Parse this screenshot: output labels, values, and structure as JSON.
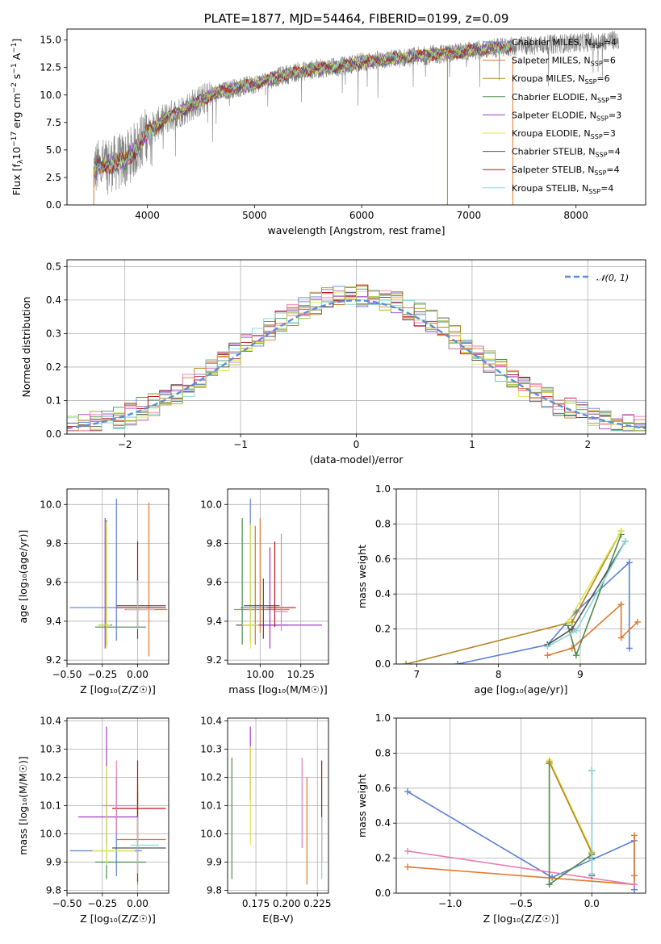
{
  "colors": {
    "Chabrier MILES": "#5b7fd6",
    "Salpeter MILES": "#e0782e",
    "Kroupa MILES": "#b5841c",
    "Chabrier ELODIE": "#4c8a4c",
    "Salpeter ELODIE": "#a03cc8",
    "Kroupa ELODIE": "#dde84a",
    "Chabrier STELIB": "#505050",
    "Salpeter STELIB": "#b01818",
    "Kroupa STELIB": "#88d6d6",
    "pink": "#e67fb4",
    "olive": "#a8c850",
    "data": "#808080"
  },
  "chart_data": [
    {
      "id": "spectrum",
      "type": "line",
      "title": "PLATE=1877, MJD=54464, FIBERID=0199, z=0.09",
      "xlabel": "wavelength [Angstrom, rest frame]",
      "ylabel": "Flux [f$_\\lambda$10$^{-17}$ erg cm$^{-2}$ s$^{-1}$ A$^{-1}$]",
      "ylabel_html": "Flux [fλ10⁻¹⁷ erg cm⁻² s⁻¹ A⁻¹]",
      "xlim": [
        3250,
        8650
      ],
      "ylim": [
        0,
        16
      ],
      "xticks": [
        4000,
        5000,
        6000,
        7000,
        8000
      ],
      "yticks": [
        0.0,
        2.5,
        5.0,
        7.5,
        10.0,
        12.5,
        15.0
      ],
      "legend": [
        "Chabrier MILES, N$_{SSP}$=4",
        "Salpeter MILES, N$_{SSP}$=6",
        "Kroupa MILES, N$_{SSP}$=6",
        "Chabrier ELODIE, N$_{SSP}$=3",
        "Salpeter ELODIE, N$_{SSP}$=3",
        "Kroupa ELODIE, N$_{SSP}$=3",
        "Chabrier STELIB, N$_{SSP}$=4",
        "Salpeter STELIB, N$_{SSP}$=4",
        "Kroupa STELIB, N$_{SSP}$=4"
      ],
      "legend_html": [
        "Chabrier MILES, N<sub>SSP</sub>=4",
        "Salpeter MILES, N<sub>SSP</sub>=6",
        "Kroupa MILES, N<sub>SSP</sub>=6",
        "Chabrier ELODIE, N<sub>SSP</sub>=3",
        "Salpeter ELODIE, N<sub>SSP</sub>=3",
        "Kroupa ELODIE, N<sub>SSP</sub>=3",
        "Chabrier STELIB, N<sub>SSP</sub>=4",
        "Salpeter STELIB, N<sub>SSP</sub>=4",
        "Kroupa STELIB, N<sub>SSP</sub>=4"
      ],
      "legend_position": "right",
      "continuum_x": [
        3500,
        3600,
        3700,
        3800,
        3900,
        4000,
        4100,
        4200,
        4300,
        4400,
        4500,
        4600,
        4800,
        5000,
        5200,
        5400,
        5600,
        5800,
        6000,
        6200,
        6400,
        6600,
        6800,
        7000,
        7200,
        7400
      ],
      "continuum_y": [
        3.3,
        3.6,
        3.8,
        4.1,
        5.2,
        6.6,
        7.4,
        8.0,
        8.5,
        9.0,
        9.5,
        10.0,
        10.6,
        11.0,
        11.6,
        12.1,
        12.4,
        12.6,
        13.0,
        13.2,
        13.4,
        13.6,
        13.8,
        14.0,
        14.2,
        14.4
      ],
      "model_x_range": [
        3500,
        7400
      ],
      "data_x_range": [
        3500,
        8400
      ],
      "vertical_lines": [
        {
          "x": 6800,
          "series": "Kroupa MILES"
        },
        {
          "x": 7410,
          "series": "Salpeter MILES"
        }
      ]
    },
    {
      "id": "residuals",
      "type": "step",
      "xlabel": "(data-model)/error",
      "ylabel": "Normed distribution",
      "xlim": [
        -2.5,
        2.5
      ],
      "ylim": [
        0,
        0.52
      ],
      "xticks": [
        -2,
        -1,
        0,
        1,
        2
      ],
      "yticks": [
        0.0,
        0.1,
        0.2,
        0.3,
        0.4,
        0.5
      ],
      "legend": [
        "$\\mathcal{N}(0,1)$"
      ],
      "legend_html": [
        "𝒩(0, 1)"
      ],
      "legend_position": "top-right",
      "bins": 50,
      "grid": true
    },
    {
      "id": "age_vs_Z",
      "type": "errorbar",
      "xlabel": "Z [log$_{10}$(Z/Z$_\\odot$)]",
      "xlabel_html": "Z [log₁₀(Z/Z☉)]",
      "ylabel": "age  [log$_{10}$(age/yr)]",
      "ylabel_html": "age  [log₁₀(age/yr)]",
      "xlim": [
        -0.5,
        0.22
      ],
      "ylim": [
        9.18,
        10.08
      ],
      "xticks": [
        -0.5,
        -0.25,
        0.0
      ],
      "yticks": [
        9.2,
        9.4,
        9.6,
        9.8,
        10.0
      ],
      "points": [
        {
          "s": "Chabrier MILES",
          "x": -0.15,
          "y": 9.47,
          "xerr": [
            0.33,
            0.18
          ],
          "yerr": [
            0.17,
            0.56
          ]
        },
        {
          "s": "Salpeter MILES",
          "x": 0.08,
          "y": 9.46,
          "xerr": [
            0.17,
            0.13
          ],
          "yerr": [
            0.24,
            0.55
          ]
        },
        {
          "s": "Kroupa MILES",
          "x": -0.22,
          "y": 9.38,
          "xerr": [
            0.04,
            0.03
          ],
          "yerr": [
            0.1,
            0.5
          ]
        },
        {
          "s": "Chabrier ELODIE",
          "x": -0.22,
          "y": 9.37,
          "xerr": [
            0.08,
            0.28
          ],
          "yerr": [
            0.1,
            0.55
          ]
        },
        {
          "s": "Salpeter ELODIE",
          "x": -0.23,
          "y": 9.38,
          "xerr": [
            0.05,
            0.05
          ],
          "yerr": [
            0.12,
            0.55
          ]
        },
        {
          "s": "Kroupa ELODIE",
          "x": -0.22,
          "y": 9.38,
          "xerr": [
            0.06,
            0.03
          ],
          "yerr": [
            0.12,
            0.53
          ]
        },
        {
          "s": "Chabrier STELIB",
          "x": 0.0,
          "y": 9.48,
          "xerr": [
            0.15,
            0.2
          ],
          "yerr": [
            0.17,
            0.14
          ]
        },
        {
          "s": "Salpeter STELIB",
          "x": 0.0,
          "y": 9.47,
          "xerr": [
            0.15,
            0.2
          ],
          "yerr": [
            0.1,
            0.34
          ]
        },
        {
          "s": "Kroupa STELIB",
          "x": 0.0,
          "y": 9.46,
          "xerr": [
            0.08,
            0.12
          ],
          "yerr": [
            0.1,
            0.15
          ]
        }
      ]
    },
    {
      "id": "age_vs_mass",
      "type": "errorbar",
      "xlabel": "mass [log$_{10}$(M/M$_\\odot$)]",
      "xlabel_html": "mass [log₁₀(M/M☉)]",
      "xlim": [
        9.8,
        10.42
      ],
      "ylim": [
        9.18,
        10.08
      ],
      "xticks": [
        10.0,
        10.25
      ],
      "yticks": [
        9.2,
        9.4,
        9.6,
        9.8,
        10.0
      ],
      "points": [
        {
          "s": "Chabrier MILES",
          "x": 9.94,
          "y": 9.47,
          "xerr": [
            0.06,
            0.16
          ],
          "yerr": [
            0.17,
            0.56
          ]
        },
        {
          "s": "Salpeter MILES",
          "x": 10.0,
          "y": 9.46,
          "xerr": [
            0.16,
            0.18
          ],
          "yerr": [
            0.12,
            0.47
          ]
        },
        {
          "s": "Kroupa MILES",
          "x": 9.97,
          "y": 9.38,
          "xerr": [
            0.05,
            0.05
          ],
          "yerr": [
            0.1,
            0.51
          ]
        },
        {
          "s": "Chabrier ELODIE",
          "x": 9.89,
          "y": 9.38,
          "xerr": [
            0.04,
            0.28
          ],
          "yerr": [
            0.1,
            0.55
          ]
        },
        {
          "s": "Salpeter ELODIE",
          "x": 10.06,
          "y": 9.38,
          "xerr": [
            0.2,
            0.32
          ],
          "yerr": [
            0.12,
            0.4
          ]
        },
        {
          "s": "Kroupa ELODIE",
          "x": 9.94,
          "y": 9.38,
          "xerr": [
            0.05,
            0.05
          ],
          "yerr": [
            0.12,
            0.52
          ]
        },
        {
          "s": "Chabrier STELIB",
          "x": 10.02,
          "y": 9.48,
          "xerr": [
            0.12,
            0.1
          ],
          "yerr": [
            0.17,
            0.14
          ]
        },
        {
          "s": "Salpeter STELIB",
          "x": 10.09,
          "y": 9.47,
          "xerr": [
            0.05,
            0.13
          ],
          "yerr": [
            0.1,
            0.34
          ]
        },
        {
          "s": "pink",
          "x": 10.13,
          "y": 9.45,
          "xerr": [
            0.04,
            0.04
          ],
          "yerr": [
            0.1,
            0.4
          ]
        }
      ]
    },
    {
      "id": "massweight_vs_age",
      "type": "line",
      "xlabel": "age  [log$_{10}$(age/yr)]",
      "xlabel_html": "age  [log₁₀(age/yr)]",
      "ylabel": "mass weight",
      "xlim": [
        6.75,
        9.8
      ],
      "ylim": [
        0,
        1.0
      ],
      "xticks": [
        7,
        8,
        9
      ],
      "yticks": [
        0.0,
        0.2,
        0.4,
        0.6,
        0.8,
        1.0
      ],
      "series": [
        {
          "s": "Chabrier MILES",
          "x": [
            7.5,
            8.6,
            8.95,
            9.6,
            9.6
          ],
          "y": [
            0.0,
            0.11,
            0.3,
            0.58,
            0.09
          ]
        },
        {
          "s": "Salpeter MILES",
          "x": [
            8.6,
            8.9,
            9.5,
            9.5,
            9.7
          ],
          "y": [
            0.05,
            0.09,
            0.34,
            0.15,
            0.24
          ]
        },
        {
          "s": "Kroupa MILES",
          "x": [
            6.87,
            8.9,
            9.5
          ],
          "y": [
            0.0,
            0.24,
            0.76
          ]
        },
        {
          "s": "Chabrier ELODIE",
          "x": [
            8.85,
            8.95,
            9.5
          ],
          "y": [
            0.22,
            0.05,
            0.74
          ]
        },
        {
          "s": "Kroupa ELODIE",
          "x": [
            8.85,
            9.5
          ],
          "y": [
            0.24,
            0.76
          ]
        },
        {
          "s": "Chabrier STELIB",
          "x": [
            8.6,
            8.9,
            9.55
          ],
          "y": [
            0.11,
            0.2,
            0.7
          ]
        },
        {
          "s": "Kroupa STELIB",
          "x": [
            8.6,
            8.95,
            9.55
          ],
          "y": [
            0.1,
            0.19,
            0.7
          ]
        }
      ]
    },
    {
      "id": "mass_vs_Z",
      "type": "errorbar",
      "xlabel": "Z [log$_{10}$(Z/Z$_\\odot$)]",
      "xlabel_html": "Z [log₁₀(Z/Z☉)]",
      "ylabel": "mass [log$_{10}$(M/M$_\\odot$)]",
      "ylabel_html": "mass [log₁₀(M/M☉)]",
      "xlim": [
        -0.5,
        0.22
      ],
      "ylim": [
        9.79,
        10.41
      ],
      "xticks": [
        -0.5,
        -0.25,
        0.0
      ],
      "yticks": [
        9.8,
        9.9,
        10.0,
        10.1,
        10.2,
        10.3,
        10.4
      ],
      "points": [
        {
          "s": "Chabrier MILES",
          "x": -0.15,
          "y": 9.94,
          "xerr": [
            0.33,
            0.18
          ],
          "yerr": [
            0.09,
            0.26
          ]
        },
        {
          "s": "Salpeter MILES",
          "x": 0.0,
          "y": 9.98,
          "xerr": [
            0.15,
            0.2
          ],
          "yerr": [
            0.16,
            0.22
          ]
        },
        {
          "s": "Chabrier ELODIE",
          "x": -0.22,
          "y": 9.9,
          "xerr": [
            0.08,
            0.28
          ],
          "yerr": [
            0.06,
            0.31
          ]
        },
        {
          "s": "Salpeter ELODIE",
          "x": -0.22,
          "y": 10.06,
          "xerr": [
            0.2,
            0.22
          ],
          "yerr": [
            0.1,
            0.32
          ]
        },
        {
          "s": "Kroupa ELODIE",
          "x": -0.22,
          "y": 9.94,
          "xerr": [
            0.1,
            0.2
          ],
          "yerr": [
            0.05,
            0.3
          ]
        },
        {
          "s": "Chabrier STELIB",
          "x": 0.0,
          "y": 9.95,
          "xerr": [
            0.18,
            0.2
          ],
          "yerr": [
            0.12,
            0.2
          ]
        },
        {
          "s": "Salpeter STELIB",
          "x": 0.0,
          "y": 10.09,
          "xerr": [
            0.18,
            0.2
          ],
          "yerr": [
            0.12,
            0.17
          ]
        },
        {
          "s": "Kroupa STELIB",
          "x": 0.0,
          "y": 9.96,
          "xerr": [
            0.05,
            0.15
          ],
          "yerr": [
            0.1,
            0.1
          ]
        },
        {
          "s": "pink",
          "x": -0.15,
          "y": 10.1,
          "xerr": [
            0.1,
            0.15
          ],
          "yerr": [
            0.1,
            0.16
          ]
        }
      ]
    },
    {
      "id": "mass_vs_EBV",
      "type": "errorbar",
      "xlabel": "E(B-V)",
      "xlim": [
        0.152,
        0.234
      ],
      "ylim": [
        9.79,
        10.41
      ],
      "xticks": [
        0.175,
        0.2,
        0.225
      ],
      "xtick_labels": [
        "0.175",
        "0.200",
        "0.225"
      ],
      "yticks": [
        9.8,
        9.9,
        10.0,
        10.1,
        10.2,
        10.3,
        10.4
      ],
      "points": [
        {
          "s": "Chabrier ELODIE",
          "x": 0.1555,
          "y": 9.93,
          "yerr": [
            0.09,
            0.34
          ]
        },
        {
          "s": "Salpeter ELODIE",
          "x": 0.1705,
          "y": 10.2,
          "yerr": [
            0.08,
            0.18
          ]
        },
        {
          "s": "Kroupa ELODIE",
          "x": 0.1705,
          "y": 10.06,
          "yerr": [
            0.1,
            0.25
          ]
        },
        {
          "s": "pink",
          "x": 0.2125,
          "y": 10.1,
          "yerr": [
            0.15,
            0.17
          ]
        },
        {
          "s": "Salpeter MILES",
          "x": 0.2165,
          "y": 9.97,
          "yerr": [
            0.15,
            0.23
          ]
        },
        {
          "s": "Salpeter STELIB",
          "x": 0.2285,
          "y": 10.1,
          "yerr": [
            0.2,
            0.16
          ]
        },
        {
          "s": "Kroupa STELIB",
          "x": 0.2285,
          "y": 9.94,
          "yerr": [
            0.1,
            0.12
          ]
        }
      ]
    },
    {
      "id": "massweight_vs_Z",
      "type": "line",
      "xlabel": "Z [log$_{10}$(Z/Z$_\\odot$)]",
      "xlabel_html": "Z [log₁₀(Z/Z☉)]",
      "ylabel": "mass weight",
      "xlim": [
        -1.38,
        0.38
      ],
      "ylim": [
        0,
        1.0
      ],
      "xticks": [
        -1.0,
        -0.5,
        0.0
      ],
      "yticks": [
        0.0,
        0.2,
        0.4,
        0.6,
        0.8,
        1.0
      ],
      "series": [
        {
          "s": "Chabrier MILES",
          "x": [
            -1.3,
            -0.28,
            0.3,
            0.3
          ],
          "y": [
            0.58,
            0.09,
            0.3,
            0.02
          ]
        },
        {
          "s": "Salpeter MILES",
          "x": [
            -1.3,
            0.3,
            0.3,
            0.3
          ],
          "y": [
            0.15,
            0.05,
            0.33,
            0.1
          ]
        },
        {
          "s": "pink",
          "x": [
            -1.3,
            0.3
          ],
          "y": [
            0.24,
            0.05
          ]
        },
        {
          "s": "Chabrier ELODIE",
          "x": [
            -0.3,
            -0.3,
            0.0
          ],
          "y": [
            0.74,
            0.05,
            0.22
          ]
        },
        {
          "s": "Kroupa ELODIE",
          "x": [
            -0.3,
            0.0
          ],
          "y": [
            0.76,
            0.24
          ]
        },
        {
          "s": "Kroupa MILES",
          "x": [
            -0.3,
            0.0
          ],
          "y": [
            0.75,
            0.23
          ]
        },
        {
          "s": "Chabrier STELIB",
          "x": [
            0.0,
            0.0,
            0.0
          ],
          "y": [
            0.7,
            0.1,
            0.2
          ]
        },
        {
          "s": "Kroupa STELIB",
          "x": [
            0.0,
            0.0,
            0.0
          ],
          "y": [
            0.7,
            0.19,
            0.11
          ]
        }
      ]
    }
  ]
}
